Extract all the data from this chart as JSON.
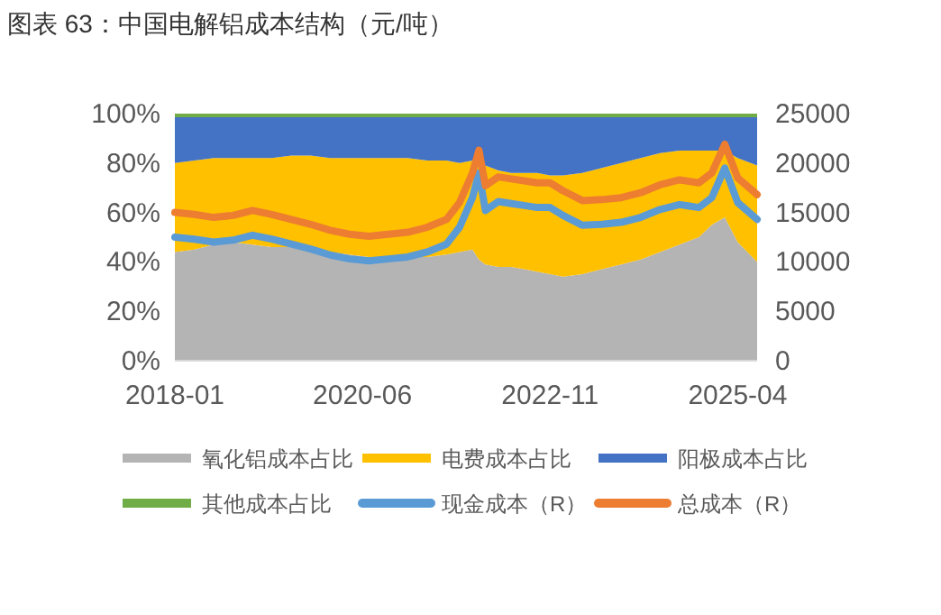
{
  "chart_data": {
    "type": "area",
    "title": "图表 63：中国电解铝成本结构（元/吨）",
    "stacked": true,
    "legend": "bottom",
    "grid": false,
    "x": [
      "2018-01",
      "2018-04",
      "2018-07",
      "2018-10",
      "2019-01",
      "2019-04",
      "2019-07",
      "2019-10",
      "2020-01",
      "2020-04",
      "2020-07",
      "2020-10",
      "2021-01",
      "2021-04",
      "2021-07",
      "2021-09",
      "2021-11",
      "2021-12",
      "2022-01",
      "2022-03",
      "2022-05",
      "2022-07",
      "2022-09",
      "2022-11",
      "2023-01",
      "2023-04",
      "2023-07",
      "2023-10",
      "2024-01",
      "2024-04",
      "2024-07",
      "2024-10",
      "2024-12",
      "2025-02",
      "2025-04",
      "2025-07"
    ],
    "xlim": [
      "2018-01",
      "2025-07"
    ],
    "xticks": [
      "2018-01",
      "2020-06",
      "2022-11",
      "2025-04"
    ],
    "ylim": [
      0,
      100
    ],
    "yticks": [
      {
        "value": 0,
        "label": "0%"
      },
      {
        "value": 20,
        "label": "20%"
      },
      {
        "value": 40,
        "label": "40%"
      },
      {
        "value": 60,
        "label": "60%"
      },
      {
        "value": 80,
        "label": "80%"
      },
      {
        "value": 100,
        "label": "100%"
      }
    ],
    "y2lim": [
      0,
      25000
    ],
    "y2ticks": [
      0,
      5000,
      10000,
      15000,
      20000,
      25000
    ],
    "series": [
      {
        "name": "氧化铝成本占比",
        "color": "#b4b4b4",
        "values": [
          44,
          45,
          47,
          48,
          47,
          46,
          46,
          45,
          44,
          43,
          42,
          42,
          42,
          42,
          43,
          44,
          45,
          41,
          39,
          38,
          38,
          37,
          36,
          35,
          34,
          35,
          37,
          39,
          41,
          44,
          47,
          50,
          55,
          58,
          48,
          40
        ]
      },
      {
        "name": "电费成本占比",
        "color": "#ffc000",
        "values": [
          36,
          36,
          35,
          34,
          35,
          36,
          37,
          38,
          38,
          39,
          40,
          40,
          40,
          39,
          38,
          36,
          36,
          39,
          40,
          39,
          38,
          39,
          40,
          40,
          41,
          41,
          41,
          41,
          41,
          40,
          38,
          35,
          30,
          27,
          34,
          39
        ]
      },
      {
        "name": "阳极成本占比",
        "color": "#4472c4",
        "values": [
          18.5,
          17.5,
          16.5,
          16.5,
          16.5,
          16.5,
          15.5,
          15.5,
          16.5,
          16.5,
          16.5,
          16.5,
          16.5,
          17.5,
          17.5,
          18.5,
          17.5,
          18.5,
          19.5,
          21.5,
          22.5,
          22.5,
          22.5,
          23.5,
          23.5,
          22.5,
          20.5,
          18.5,
          16.5,
          14.5,
          13.5,
          13.5,
          13.5,
          13.5,
          16.5,
          19.5
        ]
      },
      {
        "name": "其他成本占比",
        "color": "#70ad47",
        "values": [
          1.5,
          1.5,
          1.5,
          1.5,
          1.5,
          1.5,
          1.5,
          1.5,
          1.5,
          1.5,
          1.5,
          1.5,
          1.5,
          1.5,
          1.5,
          1.5,
          1.5,
          1.5,
          1.5,
          1.5,
          1.5,
          1.5,
          1.5,
          1.5,
          1.5,
          1.5,
          1.5,
          1.5,
          1.5,
          1.5,
          1.5,
          1.5,
          1.5,
          1.5,
          1.5,
          1.5
        ]
      },
      {
        "name": "现金成本（R）",
        "type": "line",
        "axis": "y2",
        "marker": "none",
        "line_style": "solid",
        "color": "#5b9bd5",
        "values": [
          12500,
          12300,
          12000,
          12200,
          12700,
          12300,
          11800,
          11300,
          10700,
          10300,
          10100,
          10300,
          10500,
          11000,
          11800,
          13500,
          16500,
          19000,
          15200,
          16100,
          15900,
          15700,
          15500,
          15500,
          14700,
          13700,
          13800,
          14000,
          14500,
          15300,
          15800,
          15500,
          16500,
          19500,
          16000,
          14300
        ]
      },
      {
        "name": "总成本（R）",
        "type": "line",
        "axis": "y2",
        "marker": "none",
        "line_style": "solid",
        "color": "#ed7d31",
        "values": [
          15000,
          14800,
          14500,
          14700,
          15200,
          14800,
          14300,
          13800,
          13200,
          12800,
          12600,
          12800,
          13000,
          13500,
          14300,
          16000,
          19000,
          21300,
          17700,
          18600,
          18400,
          18200,
          18000,
          18000,
          17200,
          16200,
          16300,
          16500,
          17000,
          17800,
          18300,
          18000,
          19000,
          21900,
          18500,
          16800
        ]
      }
    ]
  }
}
